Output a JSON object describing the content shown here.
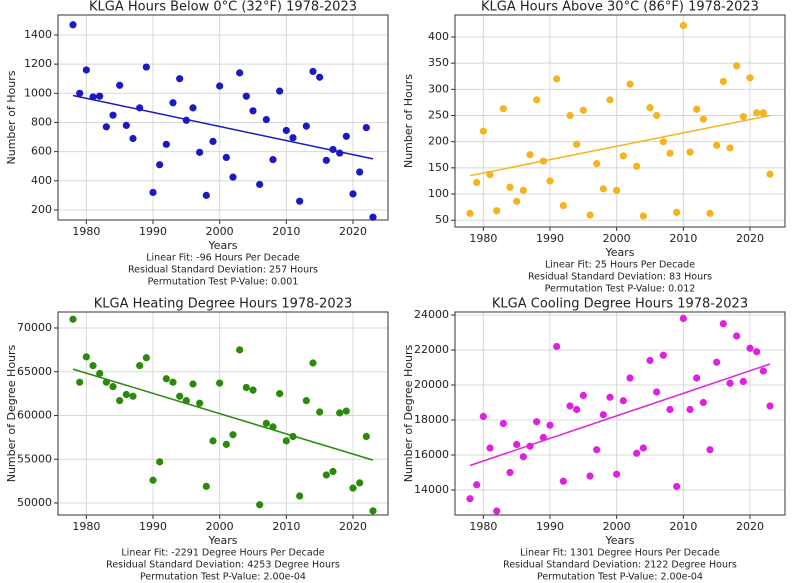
{
  "chart_data": [
    {
      "type": "scatter",
      "title": "KLGA Hours Below 0°C (32°F) 1978-2023",
      "x_label": "Years",
      "y_label": "Number of Hours",
      "annotations": [
        "Linear Fit: -96 Hours Per Decade",
        "Residual Standard Deviation: 257 Hours",
        "Permutation Test P-Value: 0.001"
      ],
      "color": "#1a1ac0",
      "grid": true,
      "x": [
        1978,
        1979,
        1980,
        1981,
        1982,
        1983,
        1984,
        1985,
        1986,
        1987,
        1988,
        1989,
        1990,
        1991,
        1992,
        1993,
        1994,
        1995,
        1996,
        1997,
        1998,
        1999,
        2000,
        2001,
        2002,
        2003,
        2004,
        2005,
        2006,
        2007,
        2008,
        2009,
        2010,
        2011,
        2012,
        2013,
        2014,
        2015,
        2016,
        2017,
        2018,
        2019,
        2020,
        2021,
        2022,
        2023
      ],
      "values": [
        1470,
        1000,
        1160,
        975,
        980,
        770,
        850,
        1055,
        780,
        690,
        900,
        1180,
        320,
        510,
        650,
        935,
        1100,
        815,
        900,
        595,
        300,
        670,
        1050,
        560,
        425,
        1140,
        980,
        880,
        375,
        820,
        545,
        1015,
        745,
        695,
        260,
        775,
        1150,
        1110,
        540,
        615,
        590,
        705,
        310,
        460,
        765,
        150
      ],
      "trend": [
        985,
        550
      ],
      "xlim": [
        1975.75,
        2025.25
      ],
      "xticks": [
        1980,
        1990,
        2000,
        2010,
        2020
      ],
      "ylim": [
        131,
        1537
      ],
      "yticks": [
        200,
        400,
        600,
        800,
        1000,
        1200,
        1400
      ]
    },
    {
      "type": "scatter",
      "title": "KLGA Hours Above 30°C (86°F) 1978-2023",
      "x_label": "Years",
      "y_label": "Number of Hours",
      "annotations": [
        "Linear Fit: 25 Hours Per Decade",
        "Residual Standard Deviation: 83 Hours",
        "Permutation Test P-Value: 0.012"
      ],
      "color": "#f5b320",
      "grid": true,
      "x": [
        1978,
        1979,
        1980,
        1981,
        1982,
        1983,
        1984,
        1985,
        1986,
        1987,
        1988,
        1989,
        1990,
        1991,
        1992,
        1993,
        1994,
        1995,
        1996,
        1997,
        1998,
        1999,
        2000,
        2001,
        2002,
        2003,
        2004,
        2005,
        2006,
        2007,
        2008,
        2009,
        2010,
        2011,
        2012,
        2013,
        2014,
        2015,
        2016,
        2017,
        2018,
        2019,
        2020,
        2021,
        2022,
        2023
      ],
      "values": [
        63,
        122,
        220,
        137,
        68,
        263,
        113,
        86,
        107,
        175,
        280,
        163,
        125,
        320,
        78,
        250,
        195,
        260,
        60,
        158,
        110,
        280,
        107,
        173,
        310,
        153,
        58,
        265,
        250,
        200,
        178,
        65,
        422,
        180,
        262,
        243,
        63,
        193,
        315,
        188,
        345,
        248,
        322,
        255,
        255,
        138
      ],
      "trend": [
        135,
        250
      ],
      "xlim": [
        1975.75,
        2025.25
      ],
      "xticks": [
        1980,
        1990,
        2000,
        2010,
        2020
      ],
      "ylim": [
        37,
        442
      ],
      "yticks": [
        50,
        100,
        150,
        200,
        250,
        300,
        350,
        400
      ]
    },
    {
      "type": "scatter",
      "title": "KLGA Heating Degree Hours 1978-2023",
      "x_label": "Years",
      "y_label": "Number of Degree Hours",
      "annotations": [
        "Linear Fit: -2291 Degree Hours Per Decade",
        "Residual Standard Deviation: 4253 Degree Hours",
        "Permutation Test P-Value: 2.00e-04"
      ],
      "color": "#2a8a0a",
      "grid": true,
      "x": [
        1978,
        1979,
        1980,
        1981,
        1982,
        1983,
        1984,
        1985,
        1986,
        1987,
        1988,
        1989,
        1990,
        1991,
        1992,
        1993,
        1994,
        1995,
        1996,
        1997,
        1998,
        1999,
        2000,
        2001,
        2002,
        2003,
        2004,
        2005,
        2006,
        2007,
        2008,
        2009,
        2010,
        2011,
        2012,
        2013,
        2014,
        2015,
        2016,
        2017,
        2018,
        2019,
        2020,
        2021,
        2022,
        2023
      ],
      "values": [
        71000,
        63800,
        66700,
        65700,
        64800,
        63800,
        63300,
        61700,
        62400,
        62200,
        65700,
        66600,
        52600,
        54700,
        64200,
        63800,
        62200,
        61700,
        63600,
        61400,
        51900,
        57100,
        63700,
        56700,
        57800,
        67500,
        63200,
        62900,
        49800,
        59100,
        58700,
        62500,
        57100,
        57600,
        50800,
        61700,
        66000,
        60400,
        53200,
        53600,
        60300,
        60500,
        51700,
        52300,
        57600,
        49100
      ],
      "trend": [
        65300,
        54900
      ],
      "xlim": [
        1975.75,
        2025.25
      ],
      "xticks": [
        1980,
        1990,
        2000,
        2010,
        2020
      ],
      "ylim": [
        48629,
        71829
      ],
      "yticks": [
        50000,
        55000,
        60000,
        65000,
        70000
      ]
    },
    {
      "type": "scatter",
      "title": "KLGA Cooling Degree Hours 1978-2023",
      "x_label": "Years",
      "y_label": "Number of Degree Hours",
      "annotations": [
        "Linear Fit: 1301 Degree Hours Per Decade",
        "Residual Standard Deviation: 2122 Degree Hours",
        "Permutation Test P-Value: 2.00e-04"
      ],
      "color": "#e020e0",
      "grid": true,
      "x": [
        1978,
        1979,
        1980,
        1981,
        1982,
        1983,
        1984,
        1985,
        1986,
        1987,
        1988,
        1989,
        1990,
        1991,
        1992,
        1993,
        1994,
        1995,
        1996,
        1997,
        1998,
        1999,
        2000,
        2001,
        2002,
        2003,
        2004,
        2005,
        2006,
        2007,
        2008,
        2009,
        2010,
        2011,
        2012,
        2013,
        2014,
        2015,
        2016,
        2017,
        2018,
        2019,
        2020,
        2021,
        2022,
        2023
      ],
      "values": [
        13500,
        14300,
        18200,
        16400,
        12800,
        17800,
        15000,
        16600,
        15900,
        16500,
        17900,
        17000,
        17700,
        22200,
        14500,
        18800,
        18600,
        19400,
        14800,
        16300,
        18300,
        19300,
        14900,
        19100,
        20400,
        16100,
        16400,
        21400,
        19600,
        21700,
        18600,
        14200,
        23800,
        18600,
        20400,
        19000,
        16300,
        21300,
        23500,
        20100,
        22800,
        20200,
        22100,
        21900,
        20800,
        18800
      ],
      "trend": [
        15400,
        21200
      ],
      "xlim": [
        1975.75,
        2025.25
      ],
      "xticks": [
        1980,
        1990,
        2000,
        2010,
        2020
      ],
      "ylim": [
        12571,
        24171
      ],
      "yticks": [
        14000,
        16000,
        18000,
        20000,
        22000,
        24000
      ]
    }
  ]
}
